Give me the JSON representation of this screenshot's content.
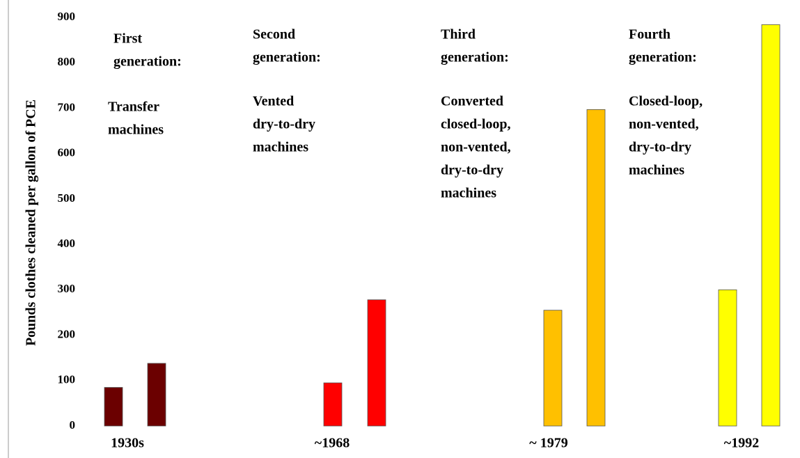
{
  "chart_data": {
    "type": "bar",
    "y_label": "Pounds clothes cleaned per gallon of PCE",
    "categories": [
      "1930s",
      "~1968",
      "~ 1979",
      "~1992"
    ],
    "colors": [
      "#6b0000",
      "#ff0000",
      "#ffc000",
      "#ffff00"
    ],
    "series": [
      {
        "values": [
          85,
          95,
          255,
          300
        ]
      },
      {
        "values": [
          138,
          278,
          697,
          884
        ]
      }
    ],
    "ylim": [
      0,
      900
    ],
    "yticks": [
      0,
      100,
      200,
      300,
      400,
      500,
      600,
      700,
      800,
      900
    ],
    "annotations": [
      {
        "title": [
          "First",
          "generation:"
        ],
        "text": [
          "Transfer",
          "machines"
        ]
      },
      {
        "title": [
          "Second",
          "generation:"
        ],
        "text": [
          "Vented",
          "dry-to-dry",
          "machines"
        ]
      },
      {
        "title": [
          "Third",
          "generation:"
        ],
        "text": [
          "Converted",
          "closed-loop,",
          "non-vented,",
          "dry-to-dry",
          "machines"
        ]
      },
      {
        "title": [
          "Fourth",
          "generation:"
        ],
        "text": [
          "Closed-loop,",
          "non-vented,",
          "dry-to-dry",
          "machines"
        ]
      }
    ]
  }
}
